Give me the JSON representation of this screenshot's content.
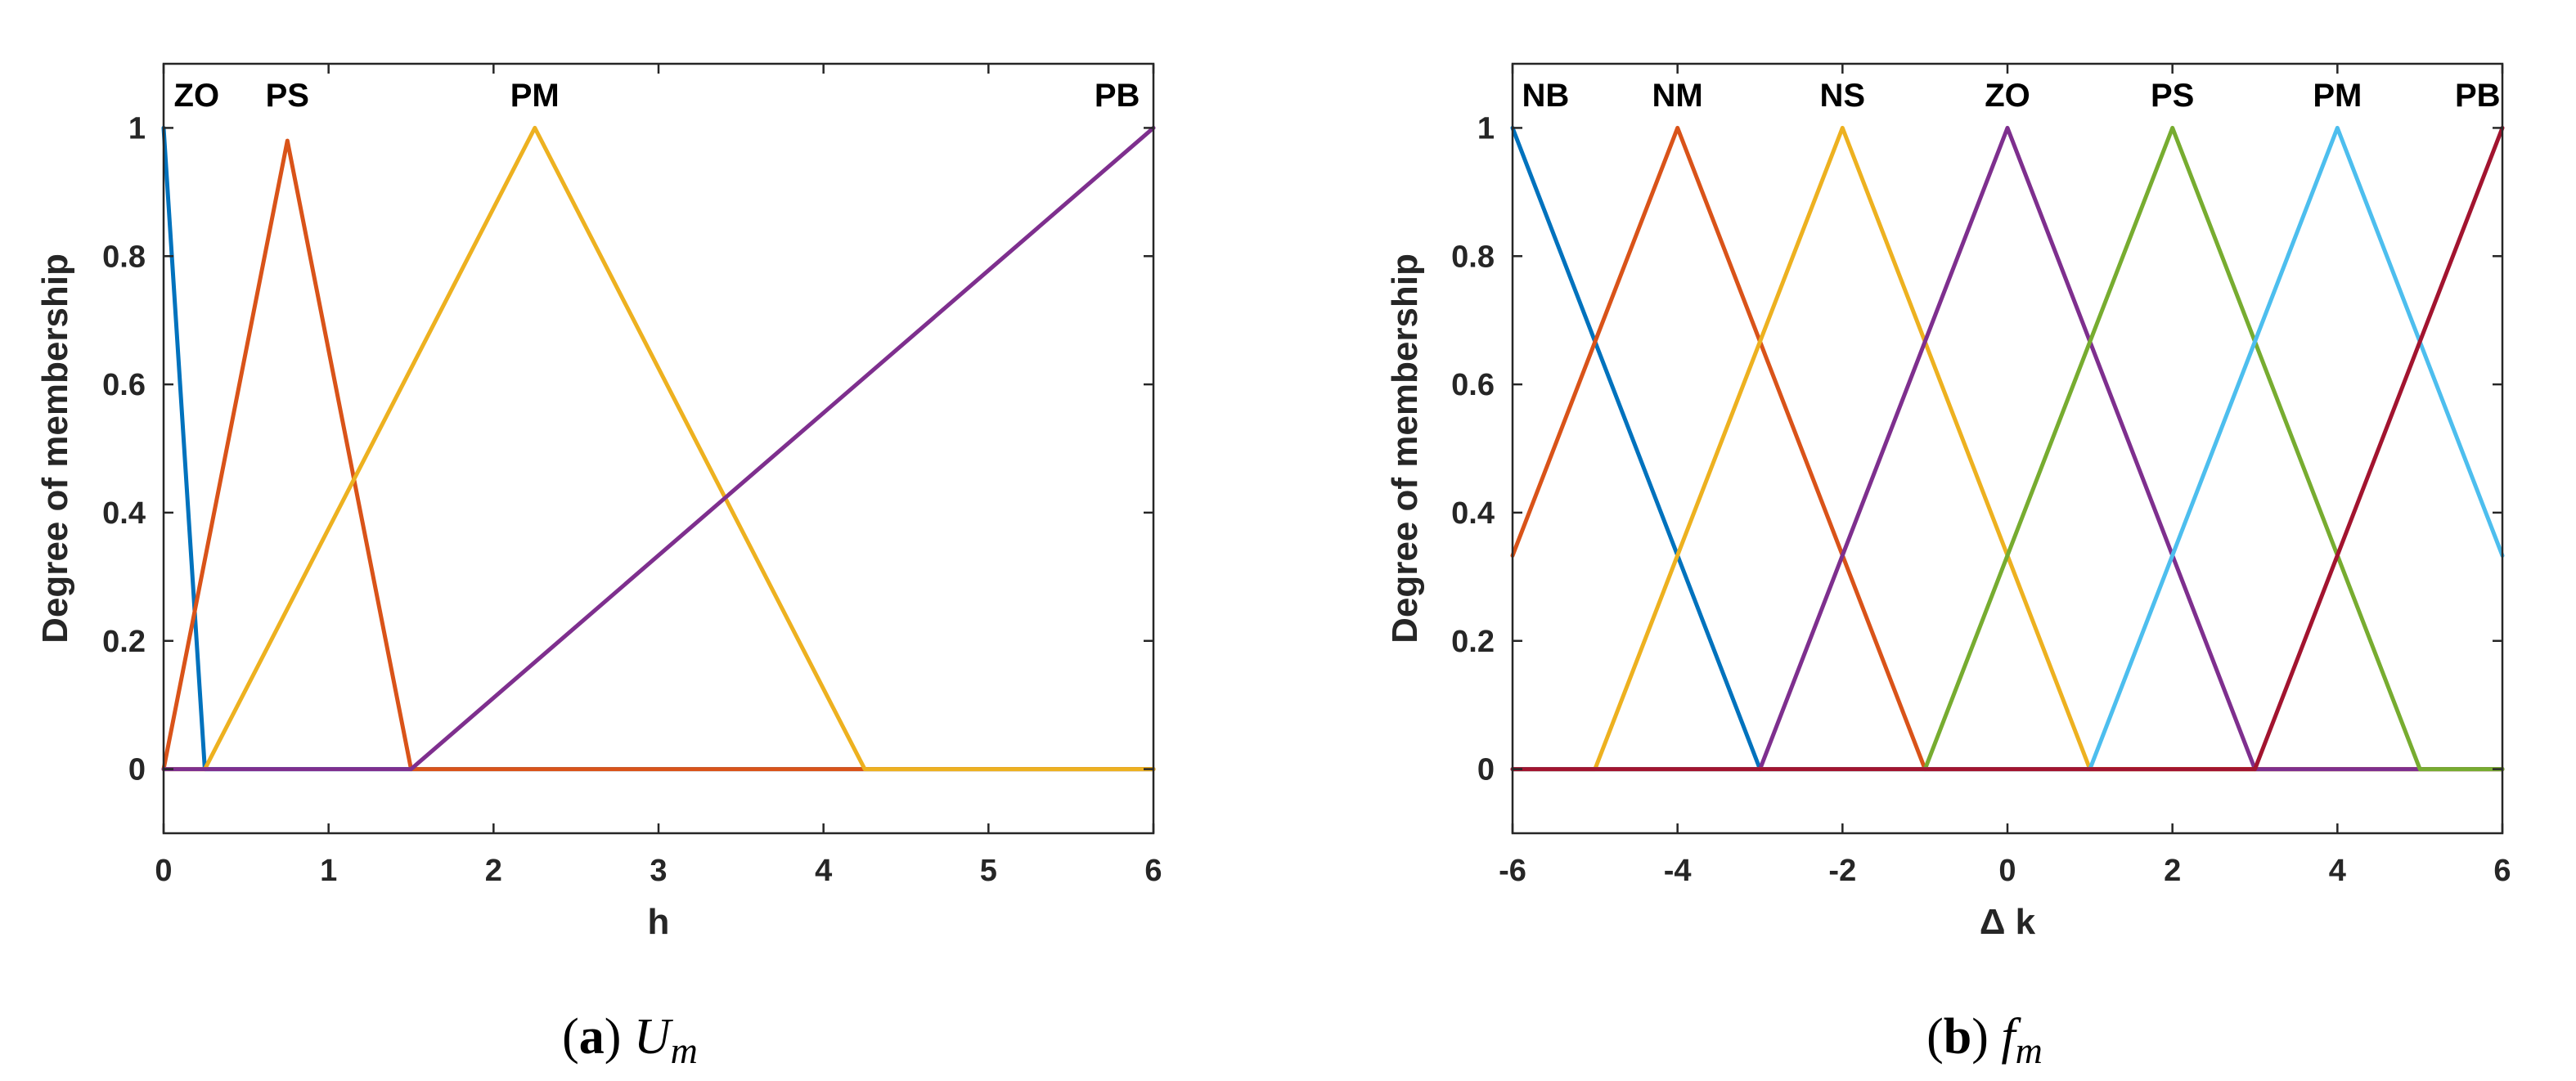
{
  "chart_data": [
    {
      "type": "line",
      "caption": {
        "letter": "a",
        "symbol": "U",
        "subscript": "m"
      },
      "xlabel": "h",
      "ylabel": "Degree of membership",
      "xlim": [
        0,
        6
      ],
      "ylim": [
        -0.1,
        1.1
      ],
      "xticks": [
        0,
        1,
        2,
        3,
        4,
        5,
        6
      ],
      "yticks": [
        0,
        0.2,
        0.4,
        0.6,
        0.8,
        1
      ],
      "series": [
        {
          "name": "ZO",
          "color": "#0072BD",
          "label_x": 0.2,
          "points": [
            [
              0,
              1
            ],
            [
              0.25,
              0
            ],
            [
              6,
              0
            ]
          ]
        },
        {
          "name": "PS",
          "color": "#D95319",
          "label_x": 0.75,
          "points": [
            [
              0,
              0
            ],
            [
              0.75,
              0.98
            ],
            [
              1.5,
              0
            ],
            [
              6,
              0
            ]
          ]
        },
        {
          "name": "PM",
          "color": "#EDB120",
          "label_x": 2.25,
          "points": [
            [
              0,
              0
            ],
            [
              0.25,
              0
            ],
            [
              2.25,
              1
            ],
            [
              4.25,
              0
            ],
            [
              6,
              0
            ]
          ]
        },
        {
          "name": "PB",
          "color": "#7E2F8E",
          "label_x": 5.78,
          "points": [
            [
              0,
              0
            ],
            [
              1.5,
              0
            ],
            [
              6,
              1
            ]
          ]
        }
      ]
    },
    {
      "type": "line",
      "caption": {
        "letter": "b",
        "symbol": "f",
        "subscript": "m"
      },
      "xlabel": "Δ k",
      "ylabel": "Degree of membership",
      "xlim": [
        -6,
        6
      ],
      "ylim": [
        -0.1,
        1.1
      ],
      "xticks": [
        -6,
        -4,
        -2,
        0,
        2,
        4,
        6
      ],
      "yticks": [
        0,
        0.2,
        0.4,
        0.6,
        0.8,
        1
      ],
      "series": [
        {
          "name": "NB",
          "color": "#0072BD",
          "label_x": -5.6,
          "points": [
            [
              -6,
              1
            ],
            [
              -3,
              0
            ],
            [
              6,
              0
            ]
          ]
        },
        {
          "name": "NM",
          "color": "#D95319",
          "label_x": -4,
          "points": [
            [
              -6,
              0.333
            ],
            [
              -4,
              1
            ],
            [
              -1,
              0
            ],
            [
              6,
              0
            ]
          ]
        },
        {
          "name": "NS",
          "color": "#EDB120",
          "label_x": -2,
          "points": [
            [
              -6,
              0
            ],
            [
              -5,
              0
            ],
            [
              -2,
              1
            ],
            [
              1,
              0
            ],
            [
              6,
              0
            ]
          ]
        },
        {
          "name": "ZO",
          "color": "#7E2F8E",
          "label_x": 0,
          "points": [
            [
              -6,
              0
            ],
            [
              -3,
              0
            ],
            [
              0,
              1
            ],
            [
              3,
              0
            ],
            [
              6,
              0
            ]
          ]
        },
        {
          "name": "PS",
          "color": "#77AC30",
          "label_x": 2,
          "points": [
            [
              -6,
              0
            ],
            [
              -1,
              0
            ],
            [
              2,
              1
            ],
            [
              5,
              0
            ],
            [
              6,
              0
            ]
          ]
        },
        {
          "name": "PM",
          "color": "#4DBEEE",
          "label_x": 4,
          "points": [
            [
              -6,
              0
            ],
            [
              1,
              0
            ],
            [
              4,
              1
            ],
            [
              6,
              0.333
            ]
          ]
        },
        {
          "name": "PB",
          "color": "#A2142F",
          "label_x": 5.7,
          "points": [
            [
              -6,
              0
            ],
            [
              3,
              0
            ],
            [
              6,
              1
            ]
          ]
        }
      ]
    }
  ]
}
